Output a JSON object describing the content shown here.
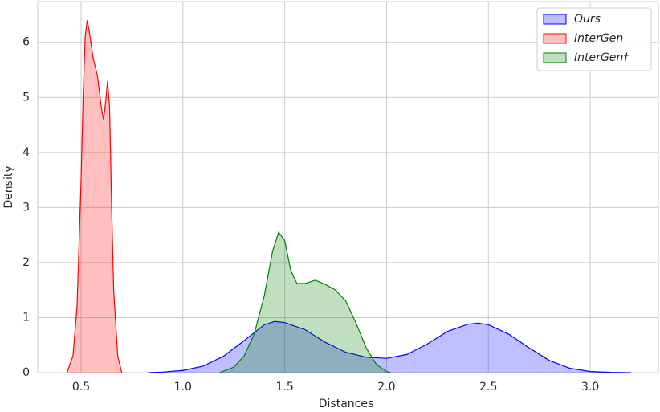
{
  "chart_data": {
    "type": "kde",
    "xlabel": "Distances",
    "ylabel": "Density",
    "xlim": [
      0.287,
      3.335
    ],
    "ylim": [
      0,
      6.74
    ],
    "xticks": [
      0.5,
      {
        "value": 1,
        "label": "1.0"
      },
      1.5,
      {
        "value": 2,
        "label": "2.0"
      },
      2.5,
      {
        "value": 3,
        "label": "3.0"
      }
    ],
    "yticks": [
      0,
      1,
      2,
      3,
      4,
      5,
      6
    ],
    "grid": true,
    "legend": "upper right",
    "series": [
      {
        "name": "Ours",
        "color": "blue",
        "x": [
          0.83,
          0.9,
          1.0,
          1.1,
          1.2,
          1.3,
          1.4,
          1.45,
          1.5,
          1.6,
          1.7,
          1.8,
          1.9,
          2.0,
          2.1,
          2.2,
          2.3,
          2.4,
          2.45,
          2.5,
          2.6,
          2.7,
          2.8,
          2.9,
          3.0,
          3.1,
          3.2
        ],
        "values": [
          0,
          0.01,
          0.04,
          0.12,
          0.3,
          0.58,
          0.87,
          0.93,
          0.91,
          0.78,
          0.55,
          0.37,
          0.28,
          0.26,
          0.33,
          0.52,
          0.75,
          0.88,
          0.9,
          0.87,
          0.7,
          0.45,
          0.22,
          0.08,
          0.02,
          0.005,
          0
        ]
      },
      {
        "name": "InterGen",
        "color": "red",
        "x": [
          0.43,
          0.46,
          0.48,
          0.5,
          0.51,
          0.52,
          0.53,
          0.54,
          0.56,
          0.58,
          0.6,
          0.61,
          0.62,
          0.63,
          0.64,
          0.65,
          0.66,
          0.68,
          0.7
        ],
        "values": [
          0,
          0.3,
          1.2,
          3.5,
          5.0,
          6.1,
          6.4,
          6.2,
          5.7,
          5.4,
          4.8,
          4.6,
          4.9,
          5.3,
          4.8,
          3.0,
          1.5,
          0.3,
          0
        ]
      },
      {
        "name": "InterGen†",
        "color": "green",
        "x": [
          1.18,
          1.25,
          1.3,
          1.35,
          1.4,
          1.44,
          1.47,
          1.5,
          1.53,
          1.56,
          1.6,
          1.65,
          1.7,
          1.75,
          1.8,
          1.85,
          1.9,
          1.95,
          2.0,
          2.02
        ],
        "values": [
          0,
          0.1,
          0.3,
          0.7,
          1.4,
          2.2,
          2.55,
          2.4,
          1.85,
          1.62,
          1.62,
          1.68,
          1.6,
          1.5,
          1.3,
          0.9,
          0.45,
          0.15,
          0.02,
          0
        ]
      }
    ]
  }
}
